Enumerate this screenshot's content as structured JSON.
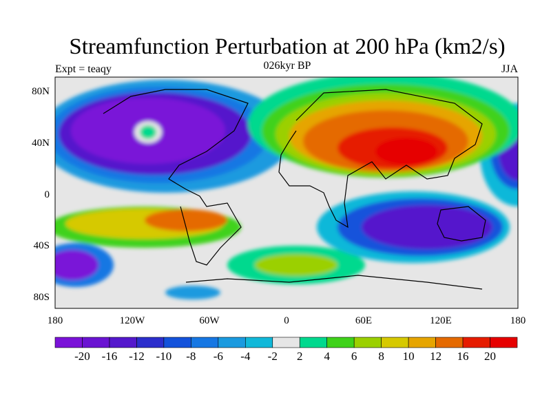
{
  "title": "Streamfunction Perturbation at 200 hPa (km2/s)",
  "subtitle_left": "Expt = teaqy",
  "subtitle_center": "026kyr BP",
  "subtitle_right": "JJA",
  "lat_labels": [
    "80N",
    "40N",
    "0",
    "40S",
    "80S"
  ],
  "lon_labels": [
    "180",
    "120W",
    "60W",
    "0",
    "60E",
    "120E",
    "180"
  ],
  "colorbar": {
    "labels": [
      "-20",
      "-16",
      "-12",
      "-10",
      "-8",
      "-6",
      "-4",
      "-2",
      "2",
      "4",
      "6",
      "8",
      "10",
      "12",
      "16",
      "20"
    ],
    "colors": [
      "#7a12d8",
      "#6a13d2",
      "#5418cc",
      "#2c2ecc",
      "#1352db",
      "#1677e3",
      "#1a9adf",
      "#11b8d9",
      "#e6e6e6",
      "#00d98e",
      "#3fd21a",
      "#9bd000",
      "#d6c900",
      "#e6a500",
      "#e56a00",
      "#e61c00",
      "#e60000"
    ]
  }
}
